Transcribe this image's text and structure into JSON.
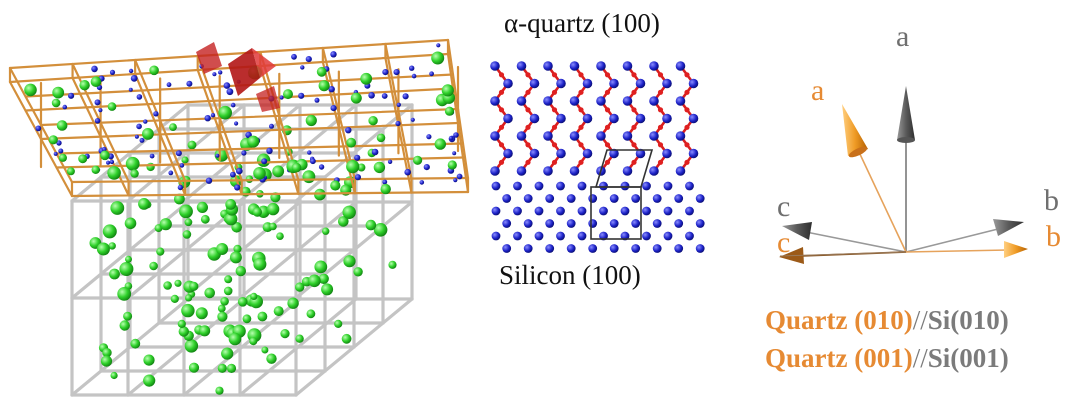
{
  "quartz_panel": {
    "title": "α-quartz (100)"
  },
  "silicon_panel": {
    "label": "Silicon (100)"
  },
  "orientation_panel": {
    "gray_axes": {
      "a": "a",
      "b": "b",
      "c": "c"
    },
    "orange_axes": {
      "a": "a",
      "b": "b",
      "c": "c"
    }
  },
  "relations": [
    {
      "quartz": "Quartz (010)",
      "separator": "//",
      "silicon": "Si(010)"
    },
    {
      "quartz": "Quartz (001)",
      "separator": "//",
      "silicon": "Si(001)"
    }
  ],
  "colors": {
    "quartz_orange": "#e68a33",
    "silicon_gray": "#7b7b7b",
    "si_atom_green": "#2ecc2e",
    "o_atom_blue": "#1c22c8",
    "quartz_bond_red": "#cc1f1f",
    "quartz_cell_orange": "#d4903a",
    "silicon_cell_gray": "#c0c0c0"
  }
}
